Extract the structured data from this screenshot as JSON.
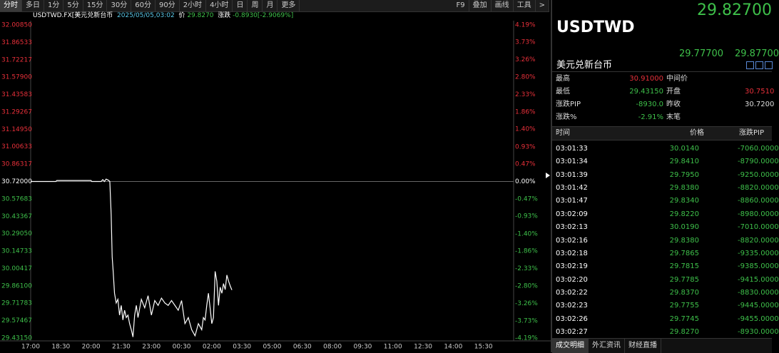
{
  "toolbar": {
    "tabs": [
      "分时",
      "多日",
      "1分",
      "5分",
      "15分",
      "30分",
      "60分",
      "90分",
      "2小时",
      "4小时",
      "日",
      "周",
      "月",
      "更多"
    ],
    "tools": [
      "F9",
      "叠加",
      "画线",
      "工具",
      ">"
    ]
  },
  "info_bar": {
    "symbol": "USDTWD.FX[美元兑新台币",
    "time": "2025/05/05,03:02",
    "price_label": "价",
    "price": "29.8270",
    "change_label": "涨跌",
    "change": "-0.8930[-2.9069%]"
  },
  "chart_data": {
    "type": "line",
    "color": "#ffffff",
    "x": [
      0,
      75,
      78,
      180,
      182,
      210,
      215,
      220,
      225,
      232,
      236,
      240,
      243,
      246,
      250,
      255,
      260,
      265,
      270,
      275,
      280,
      285,
      290,
      295,
      300,
      305,
      310,
      315,
      320,
      330,
      340,
      350,
      360,
      370,
      380,
      390,
      400,
      410,
      420,
      430,
      440,
      450,
      460,
      470,
      480,
      490,
      500,
      510,
      515,
      520,
      525,
      530,
      535,
      540,
      545,
      550,
      555,
      560,
      565,
      570,
      575,
      580,
      585,
      590,
      595,
      600
    ],
    "values": [
      30.72,
      30.72,
      30.728,
      30.728,
      30.72,
      30.72,
      30.735,
      30.72,
      30.74,
      30.73,
      30.72,
      30.45,
      30.1,
      29.98,
      29.8,
      29.72,
      29.75,
      29.62,
      29.7,
      29.58,
      29.66,
      29.6,
      29.62,
      29.55,
      29.5,
      29.44,
      29.62,
      29.7,
      29.6,
      29.75,
      29.68,
      29.78,
      29.62,
      29.74,
      29.7,
      29.76,
      29.72,
      29.7,
      29.74,
      29.7,
      29.66,
      29.74,
      29.55,
      29.6,
      29.5,
      29.45,
      29.55,
      29.5,
      29.6,
      29.58,
      29.7,
      29.8,
      29.68,
      29.55,
      29.6,
      29.98,
      29.9,
      29.7,
      29.85,
      29.8,
      29.88,
      29.83,
      29.95,
      29.9,
      29.86,
      29.827
    ],
    "xlim": [
      0,
      1440
    ],
    "xticks": [
      {
        "value": 0,
        "label": "17:00"
      },
      {
        "value": 90,
        "label": "18:30"
      },
      {
        "value": 180,
        "label": "20:00"
      },
      {
        "value": 270,
        "label": "21:30"
      },
      {
        "value": 360,
        "label": "23:00"
      },
      {
        "value": 450,
        "label": "00:30"
      },
      {
        "value": 540,
        "label": "02:00"
      },
      {
        "value": 630,
        "label": "03:30"
      },
      {
        "value": 720,
        "label": "05:00"
      },
      {
        "value": 810,
        "label": "06:30"
      },
      {
        "value": 900,
        "label": "08:00"
      },
      {
        "value": 990,
        "label": "09:30"
      },
      {
        "value": 1080,
        "label": "11:00"
      },
      {
        "value": 1170,
        "label": "12:30"
      },
      {
        "value": 1260,
        "label": "14:00"
      },
      {
        "value": 1350,
        "label": "15:30"
      }
    ],
    "ylim": [
      29.4315,
      32.0085
    ],
    "yticks": [
      {
        "value": 32.0085,
        "label": "32.00850"
      },
      {
        "value": 31.86533,
        "label": "31.86533"
      },
      {
        "value": 31.72217,
        "label": "31.72217"
      },
      {
        "value": 31.579,
        "label": "31.57900"
      },
      {
        "value": 31.43583,
        "label": "31.43583"
      },
      {
        "value": 31.29267,
        "label": "31.29267"
      },
      {
        "value": 31.1495,
        "label": "31.14950"
      },
      {
        "value": 31.00633,
        "label": "31.00633"
      },
      {
        "value": 30.86317,
        "label": "30.86317"
      },
      {
        "value": 30.72,
        "label": "30.72000"
      },
      {
        "value": 30.57683,
        "label": "30.57683"
      },
      {
        "value": 30.43367,
        "label": "30.43367"
      },
      {
        "value": 30.2905,
        "label": "30.29050"
      },
      {
        "value": 30.14733,
        "label": "30.14733"
      },
      {
        "value": 30.00417,
        "label": "30.00417"
      },
      {
        "value": 29.861,
        "label": "29.86100"
      },
      {
        "value": 29.71783,
        "label": "29.71783"
      },
      {
        "value": 29.57467,
        "label": "29.57467"
      },
      {
        "value": 29.4315,
        "label": "29.43150"
      }
    ],
    "y2lim": [
      -4.19,
      4.19
    ],
    "y2ticks": [
      {
        "value": 4.19,
        "label": "4.19%"
      },
      {
        "value": 3.73,
        "label": "3.73%"
      },
      {
        "value": 3.26,
        "label": "3.26%"
      },
      {
        "value": 2.8,
        "label": "2.80%"
      },
      {
        "value": 2.33,
        "label": "2.33%"
      },
      {
        "value": 1.86,
        "label": "1.86%"
      },
      {
        "value": 1.4,
        "label": "1.40%"
      },
      {
        "value": 0.93,
        "label": "0.93%"
      },
      {
        "value": 0.47,
        "label": "0.47%"
      },
      {
        "value": 0,
        "label": "0.00%"
      },
      {
        "value": -0.47,
        "label": "-0.47%"
      },
      {
        "value": -0.93,
        "label": "-0.93%"
      },
      {
        "value": -1.4,
        "label": "-1.40%"
      },
      {
        "value": -1.86,
        "label": "-1.86%"
      },
      {
        "value": -2.33,
        "label": "-2.33%"
      },
      {
        "value": -2.8,
        "label": "-2.80%"
      },
      {
        "value": -3.26,
        "label": "-3.26%"
      },
      {
        "value": -3.73,
        "label": "-3.73%"
      },
      {
        "value": -4.19,
        "label": "-4.19%"
      }
    ]
  },
  "quote": {
    "last": "29.82700",
    "symbol": "USDTWD",
    "name": "美元兑新台币",
    "bid": "29.77700",
    "ask": "29.87700",
    "stats": [
      [
        "最高",
        "30.91000",
        "中间价",
        ""
      ],
      [
        "最低",
        "29.43150",
        "开盘",
        "30.7510"
      ],
      [
        "涨跌PIP",
        "-8930.0",
        "昨收",
        "30.7200"
      ],
      [
        "涨跌%",
        "-2.91%",
        "末笔",
        ""
      ]
    ]
  },
  "trades": {
    "headers": [
      "时间",
      "价格",
      "涨跌PIP"
    ],
    "rows": [
      [
        "03:01:33",
        "30.0140",
        "-7060.0000"
      ],
      [
        "03:01:34",
        "29.8410",
        "-8790.0000"
      ],
      [
        "03:01:39",
        "29.7950",
        "-9250.0000"
      ],
      [
        "03:01:42",
        "29.8380",
        "-8820.0000"
      ],
      [
        "03:01:47",
        "29.8340",
        "-8860.0000"
      ],
      [
        "03:02:09",
        "29.8220",
        "-8980.0000"
      ],
      [
        "03:02:13",
        "30.0190",
        "-7010.0000"
      ],
      [
        "03:02:16",
        "29.8380",
        "-8820.0000"
      ],
      [
        "03:02:18",
        "29.7865",
        "-9335.0000"
      ],
      [
        "03:02:19",
        "29.7815",
        "-9385.0000"
      ],
      [
        "03:02:20",
        "29.7785",
        "-9415.0000"
      ],
      [
        "03:02:22",
        "29.8370",
        "-8830.0000"
      ],
      [
        "03:02:23",
        "29.7755",
        "-9445.0000"
      ],
      [
        "03:02:26",
        "29.7745",
        "-9455.0000"
      ],
      [
        "03:02:27",
        "29.8270",
        "-8930.0000"
      ]
    ]
  },
  "bottom_tabs": [
    "成交明细",
    "外汇资讯",
    "财经直播"
  ]
}
